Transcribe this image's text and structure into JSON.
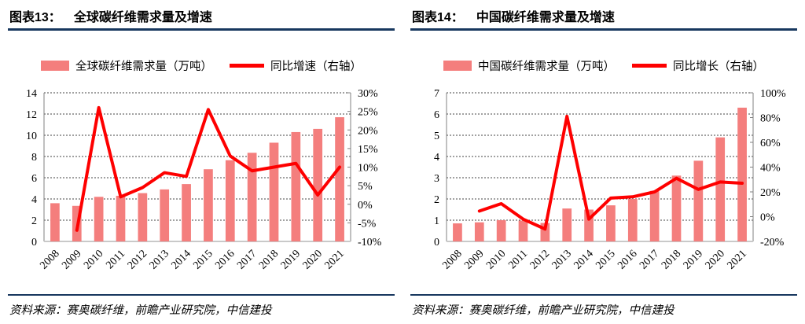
{
  "colors": {
    "bar": "#f47e7d",
    "line": "#fe0000",
    "navy": "#17375e",
    "grid": "#444444",
    "axis": "#808080",
    "baseline": "#c9c9c9"
  },
  "chart_data": [
    {
      "type": "bar+line",
      "figure_label": "图表13：",
      "title": "全球碳纤维需求量及增速",
      "categories": [
        "2008",
        "2009",
        "2010",
        "2011",
        "2012",
        "2013",
        "2014",
        "2015",
        "2016",
        "2017",
        "2018",
        "2019",
        "2020",
        "2021"
      ],
      "series": [
        {
          "name": "全球碳纤维需求量（万吨）",
          "type": "bar",
          "axis": "left",
          "values": [
            3.6,
            3.35,
            4.2,
            4.3,
            4.55,
            4.9,
            5.4,
            6.8,
            7.65,
            8.35,
            9.3,
            10.3,
            10.6,
            11.7
          ]
        },
        {
          "name": "同比增速（右轴）",
          "type": "line",
          "axis": "right",
          "unit": "%",
          "values": [
            null,
            -7,
            26,
            2,
            4.5,
            8.5,
            7.5,
            25.5,
            13,
            9,
            10,
            11,
            2.5,
            10
          ]
        }
      ],
      "left_axis": {
        "min": 0,
        "max": 14,
        "step": 2
      },
      "right_axis": {
        "min": -10,
        "max": 30,
        "step": 5,
        "suffix": "%"
      },
      "left_tick_labels": [
        "0",
        "2",
        "4",
        "6",
        "8",
        "10",
        "12",
        "14"
      ],
      "right_tick_labels": [
        "-10%",
        "-5%",
        "0%",
        "5%",
        "10%",
        "15%",
        "20%",
        "25%",
        "30%"
      ],
      "grid": true,
      "legend_position": "top",
      "source": "资料来源：赛奥碳纤维，前瞻产业研究院，中信建投"
    },
    {
      "type": "bar+line",
      "figure_label": "图表14：",
      "title": "中国碳纤维需求量及增速",
      "categories": [
        "2008",
        "2009",
        "2010",
        "2011",
        "2012",
        "2013",
        "2014",
        "2015",
        "2016",
        "2017",
        "2018",
        "2019",
        "2020",
        "2021"
      ],
      "series": [
        {
          "name": "中国碳纤维需求量（万吨）",
          "type": "bar",
          "axis": "left",
          "values": [
            0.85,
            0.9,
            1.0,
            0.98,
            0.87,
            1.55,
            1.5,
            1.7,
            2.0,
            2.38,
            3.1,
            3.8,
            4.9,
            6.3
          ]
        },
        {
          "name": "同比增长（右轴）",
          "type": "line",
          "axis": "right",
          "unit": "%",
          "values": [
            null,
            4.5,
            10.5,
            -2,
            -10,
            81,
            -2,
            15,
            16,
            20,
            31,
            22,
            28,
            27
          ]
        }
      ],
      "left_axis": {
        "min": 0,
        "max": 7,
        "step": 1
      },
      "right_axis": {
        "min": -20,
        "max": 100,
        "step": 20,
        "suffix": "%"
      },
      "left_tick_labels": [
        "0",
        "1",
        "2",
        "3",
        "4",
        "5",
        "6",
        "7"
      ],
      "right_tick_labels": [
        "-20%",
        "0%",
        "20%",
        "40%",
        "60%",
        "80%",
        "100%"
      ],
      "grid": true,
      "legend_position": "top",
      "source": "资料来源：赛奥碳纤维，前瞻产业研究院，中信建投"
    }
  ]
}
